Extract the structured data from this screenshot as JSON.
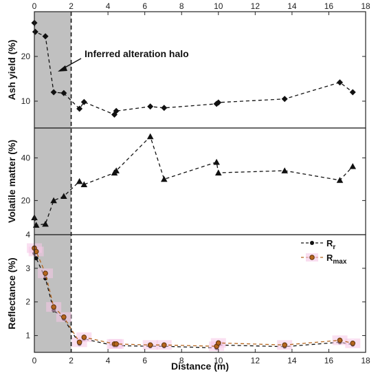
{
  "chart_data": [
    {
      "type": "line",
      "ylabel": "Ash yield (%)",
      "xlim": [
        0,
        18
      ],
      "ylim": [
        4,
        30
      ],
      "yticks": [
        10,
        20
      ],
      "xticks": [
        0,
        2,
        4,
        6,
        8,
        10,
        12,
        14,
        16,
        18
      ],
      "annotation": "Inferred alteration halo",
      "shaded_region": [
        0,
        2
      ],
      "marker": "diamond",
      "series": [
        {
          "x": [
            0.0,
            0.05,
            0.6,
            1.05,
            1.6,
            2.45,
            2.7,
            4.35,
            4.45,
            6.3,
            7.05,
            9.9,
            10.0,
            13.6,
            16.6,
            17.3
          ],
          "y": [
            27.5,
            25.5,
            24.5,
            12.0,
            11.8,
            8.3,
            9.8,
            7.0,
            7.8,
            8.8,
            8.5,
            9.4,
            9.7,
            10.5,
            14.2,
            12.0
          ]
        }
      ]
    },
    {
      "type": "line",
      "ylabel": "Volatile matter (%)",
      "xlim": [
        0,
        18
      ],
      "ylim": [
        4,
        54
      ],
      "yticks": [
        20,
        40
      ],
      "marker": "triangle",
      "series": [
        {
          "x": [
            0.0,
            0.1,
            0.6,
            1.05,
            1.6,
            2.45,
            2.7,
            4.35,
            4.45,
            6.3,
            7.05,
            9.9,
            10.0,
            13.6,
            16.6,
            17.3
          ],
          "y": [
            12.0,
            8.5,
            9.0,
            20.0,
            22.0,
            29.0,
            27.5,
            33.0,
            34.0,
            50.0,
            30.0,
            38.0,
            33.0,
            34.0,
            29.5,
            36.0
          ]
        }
      ]
    },
    {
      "type": "line",
      "ylabel": "Reflectance (%)",
      "xlabel": "Distance (m)",
      "xlim": [
        0,
        18
      ],
      "ylim": [
        0.5,
        4.0
      ],
      "yticks": [
        1,
        2,
        3
      ],
      "xticks": [
        0,
        2,
        4,
        6,
        8,
        10,
        12,
        14,
        16,
        18
      ],
      "legend": "top-right",
      "series": [
        {
          "name": "R_r",
          "legend_main": "R",
          "legend_sub": "r",
          "color": "#111111",
          "x": [
            0.0,
            0.1,
            0.6,
            1.05,
            1.6,
            2.45,
            2.7,
            4.35,
            4.45,
            6.3,
            7.05,
            9.9,
            10.0,
            13.6,
            16.6,
            17.3
          ],
          "y": [
            3.45,
            3.3,
            2.7,
            1.75,
            1.5,
            0.75,
            0.9,
            0.7,
            0.7,
            0.68,
            0.68,
            0.63,
            0.72,
            0.67,
            0.8,
            0.73
          ]
        },
        {
          "name": "R_max",
          "legend_main": "R",
          "legend_sub": "max",
          "color": "#b5651d",
          "x": [
            0.0,
            0.1,
            0.6,
            1.05,
            1.6,
            2.45,
            2.7,
            4.35,
            4.45,
            6.3,
            7.05,
            9.9,
            10.0,
            13.6,
            16.6,
            17.3
          ],
          "y": [
            3.6,
            3.5,
            2.85,
            1.85,
            1.55,
            0.8,
            0.95,
            0.75,
            0.75,
            0.72,
            0.72,
            0.68,
            0.78,
            0.72,
            0.86,
            0.77
          ]
        }
      ]
    }
  ],
  "colors": {
    "shade": "#c0c0c0",
    "axis": "#222222",
    "line": "#111111",
    "rmax_fill": "#b5651d",
    "halo": "#f5c6e6"
  }
}
